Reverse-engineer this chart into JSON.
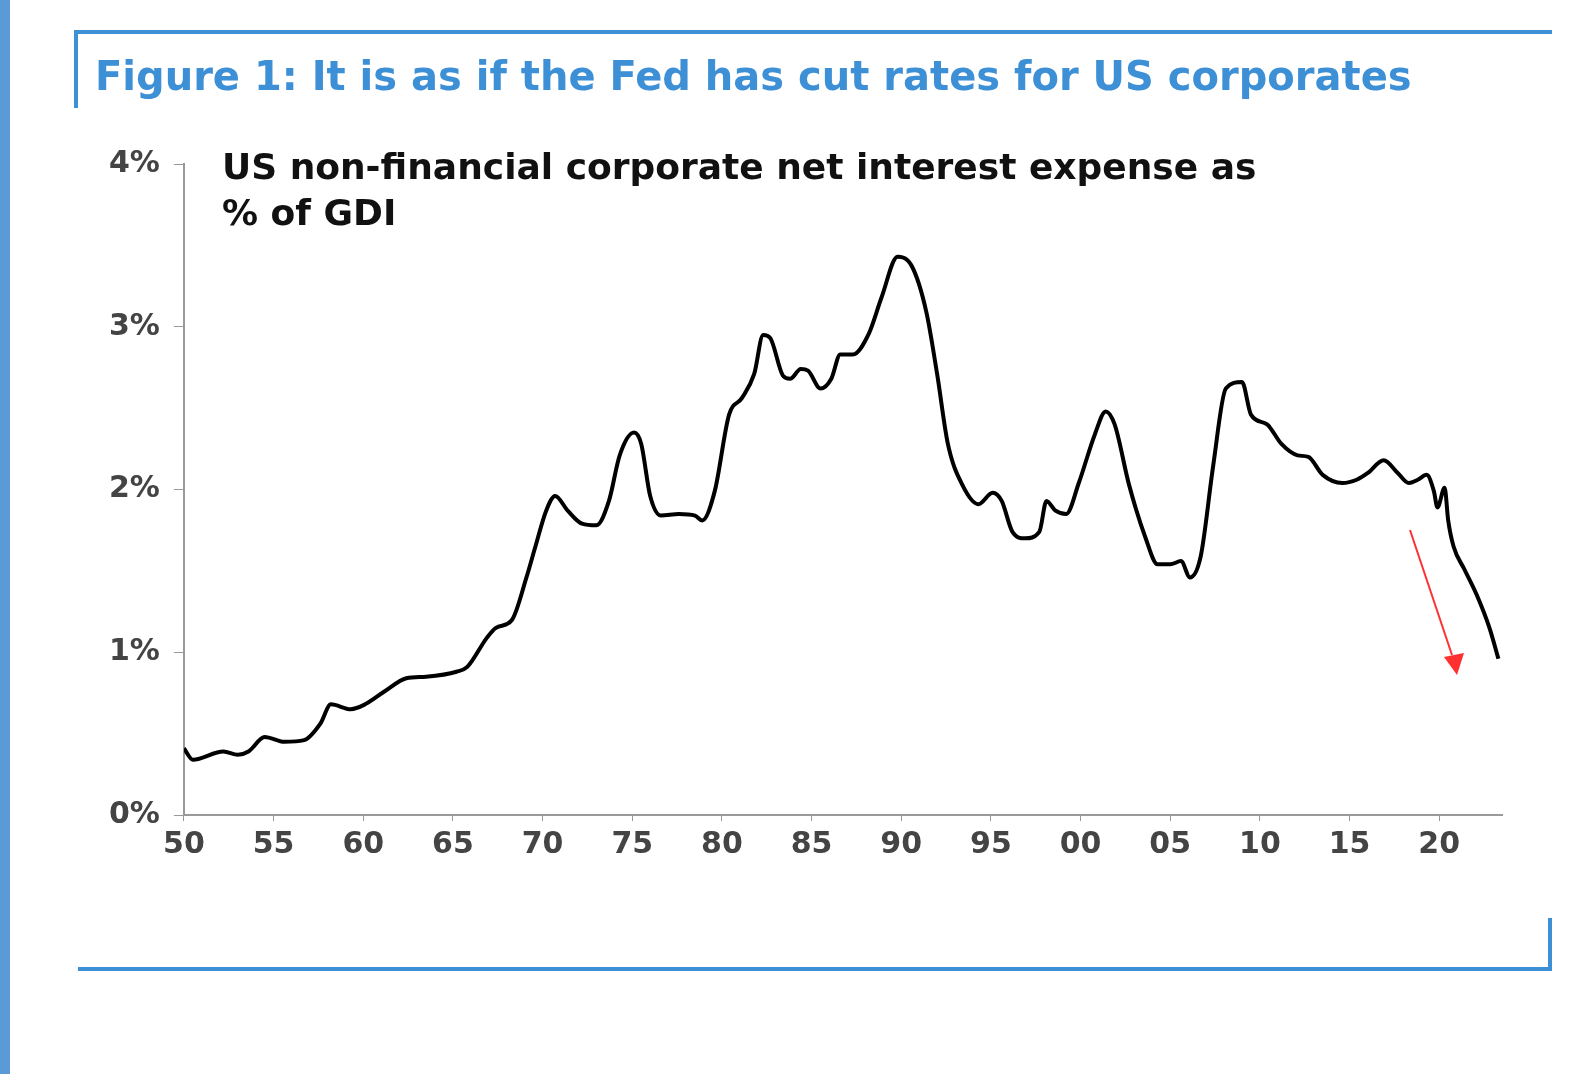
{
  "chart_data": {
    "type": "line",
    "title": "Figure 1: It is as if the Fed has cut rates for US corporates",
    "subtitle": "US non-financial corporate net interest expense as % of GDI",
    "x": [
      1950,
      1950.5,
      1952.2,
      1953,
      1953.6,
      1954.5,
      1955.6,
      1956.7,
      1957.6,
      1958.2,
      1959.3,
      1960.1,
      1961.2,
      1962.4,
      1963.5,
      1965.2,
      1965.8,
      1966.9,
      1967.4,
      1968.3,
      1969.1,
      1969.6,
      1970.2,
      1970.7,
      1971.4,
      1972.2,
      1973,
      1973.7,
      1974.3,
      1975.1,
      1975.5,
      1976,
      1976.6,
      1977.6,
      1978.5,
      1978.9,
      1979.6,
      1980.4,
      1981.1,
      1981.8,
      1982.3,
      1982.7,
      1983.4,
      1983.8,
      1984.4,
      1984.8,
      1985.5,
      1986.1,
      1986.6,
      1987.3,
      1988.2,
      1988.9,
      1989.8,
      1990.6,
      1991.4,
      1992,
      1992.6,
      1993.4,
      1994.3,
      1995.1,
      1995.6,
      1996.2,
      1996.9,
      1997.7,
      1998.1,
      1998.6,
      1999.2,
      1999.9,
      2000.8,
      2001.4,
      2001.9,
      2002.7,
      2003.6,
      2004.3,
      2005,
      2005.6,
      2006.1,
      2006.7,
      2007.4,
      2008.1,
      2009,
      2009.5,
      2010.4,
      2011.2,
      2012.1,
      2012.7,
      2013.5,
      2014.6,
      2015.4,
      2016,
      2016.9,
      2017.7,
      2018.3,
      2018.8,
      2019.3,
      2019.7,
      2019.9,
      2020.3,
      2020.5,
      2020.8,
      2021.4,
      2022.1,
      2022.8,
      2023.3
    ],
    "series": [
      {
        "color": "#000000",
        "values": [
          0.41,
          0.34,
          0.39,
          0.37,
          0.39,
          0.48,
          0.45,
          0.46,
          0.56,
          0.68,
          0.65,
          0.68,
          0.76,
          0.84,
          0.85,
          0.88,
          0.91,
          1.09,
          1.15,
          1.2,
          1.46,
          1.65,
          1.87,
          1.96,
          1.87,
          1.79,
          1.78,
          1.93,
          2.21,
          2.35,
          2.28,
          1.96,
          1.84,
          1.85,
          1.84,
          1.81,
          1.99,
          2.46,
          2.56,
          2.71,
          2.95,
          2.93,
          2.7,
          2.68,
          2.74,
          2.73,
          2.62,
          2.68,
          2.83,
          2.83,
          2.96,
          3.18,
          3.43,
          3.37,
          3.09,
          2.71,
          2.28,
          2.03,
          1.91,
          1.98,
          1.93,
          1.74,
          1.7,
          1.74,
          1.93,
          1.87,
          1.85,
          2.04,
          2.34,
          2.48,
          2.4,
          2.03,
          1.71,
          1.54,
          1.54,
          1.56,
          1.46,
          1.59,
          2.15,
          2.62,
          2.66,
          2.46,
          2.4,
          2.28,
          2.21,
          2.2,
          2.09,
          2.04,
          2.06,
          2.1,
          2.18,
          2.1,
          2.04,
          2.06,
          2.09,
          1.99,
          1.89,
          2.01,
          1.81,
          1.65,
          1.51,
          1.35,
          1.15,
          0.96
        ]
      }
    ],
    "xlim": [
      1950,
      2023.5
    ],
    "xticks": [
      {
        "value": 1950,
        "label": "50"
      },
      {
        "value": 1955,
        "label": "55"
      },
      {
        "value": 1960,
        "label": "60"
      },
      {
        "value": 1965,
        "label": "65"
      },
      {
        "value": 1970,
        "label": "70"
      },
      {
        "value": 1975,
        "label": "75"
      },
      {
        "value": 1980,
        "label": "80"
      },
      {
        "value": 1985,
        "label": "85"
      },
      {
        "value": 1990,
        "label": "90"
      },
      {
        "value": 1995,
        "label": "95"
      },
      {
        "value": 2000,
        "label": "00"
      },
      {
        "value": 2005,
        "label": "05"
      },
      {
        "value": 2010,
        "label": "10"
      },
      {
        "value": 2015,
        "label": "15"
      },
      {
        "value": 2020,
        "label": "20"
      }
    ],
    "ylim": [
      0,
      4
    ],
    "yticks": [
      {
        "value": 0,
        "label": "0%"
      },
      {
        "value": 1,
        "label": "1%"
      },
      {
        "value": 2,
        "label": "2%"
      },
      {
        "value": 3,
        "label": "3%"
      },
      {
        "value": 4,
        "label": "4%"
      }
    ],
    "grid": false,
    "legend": false
  }
}
